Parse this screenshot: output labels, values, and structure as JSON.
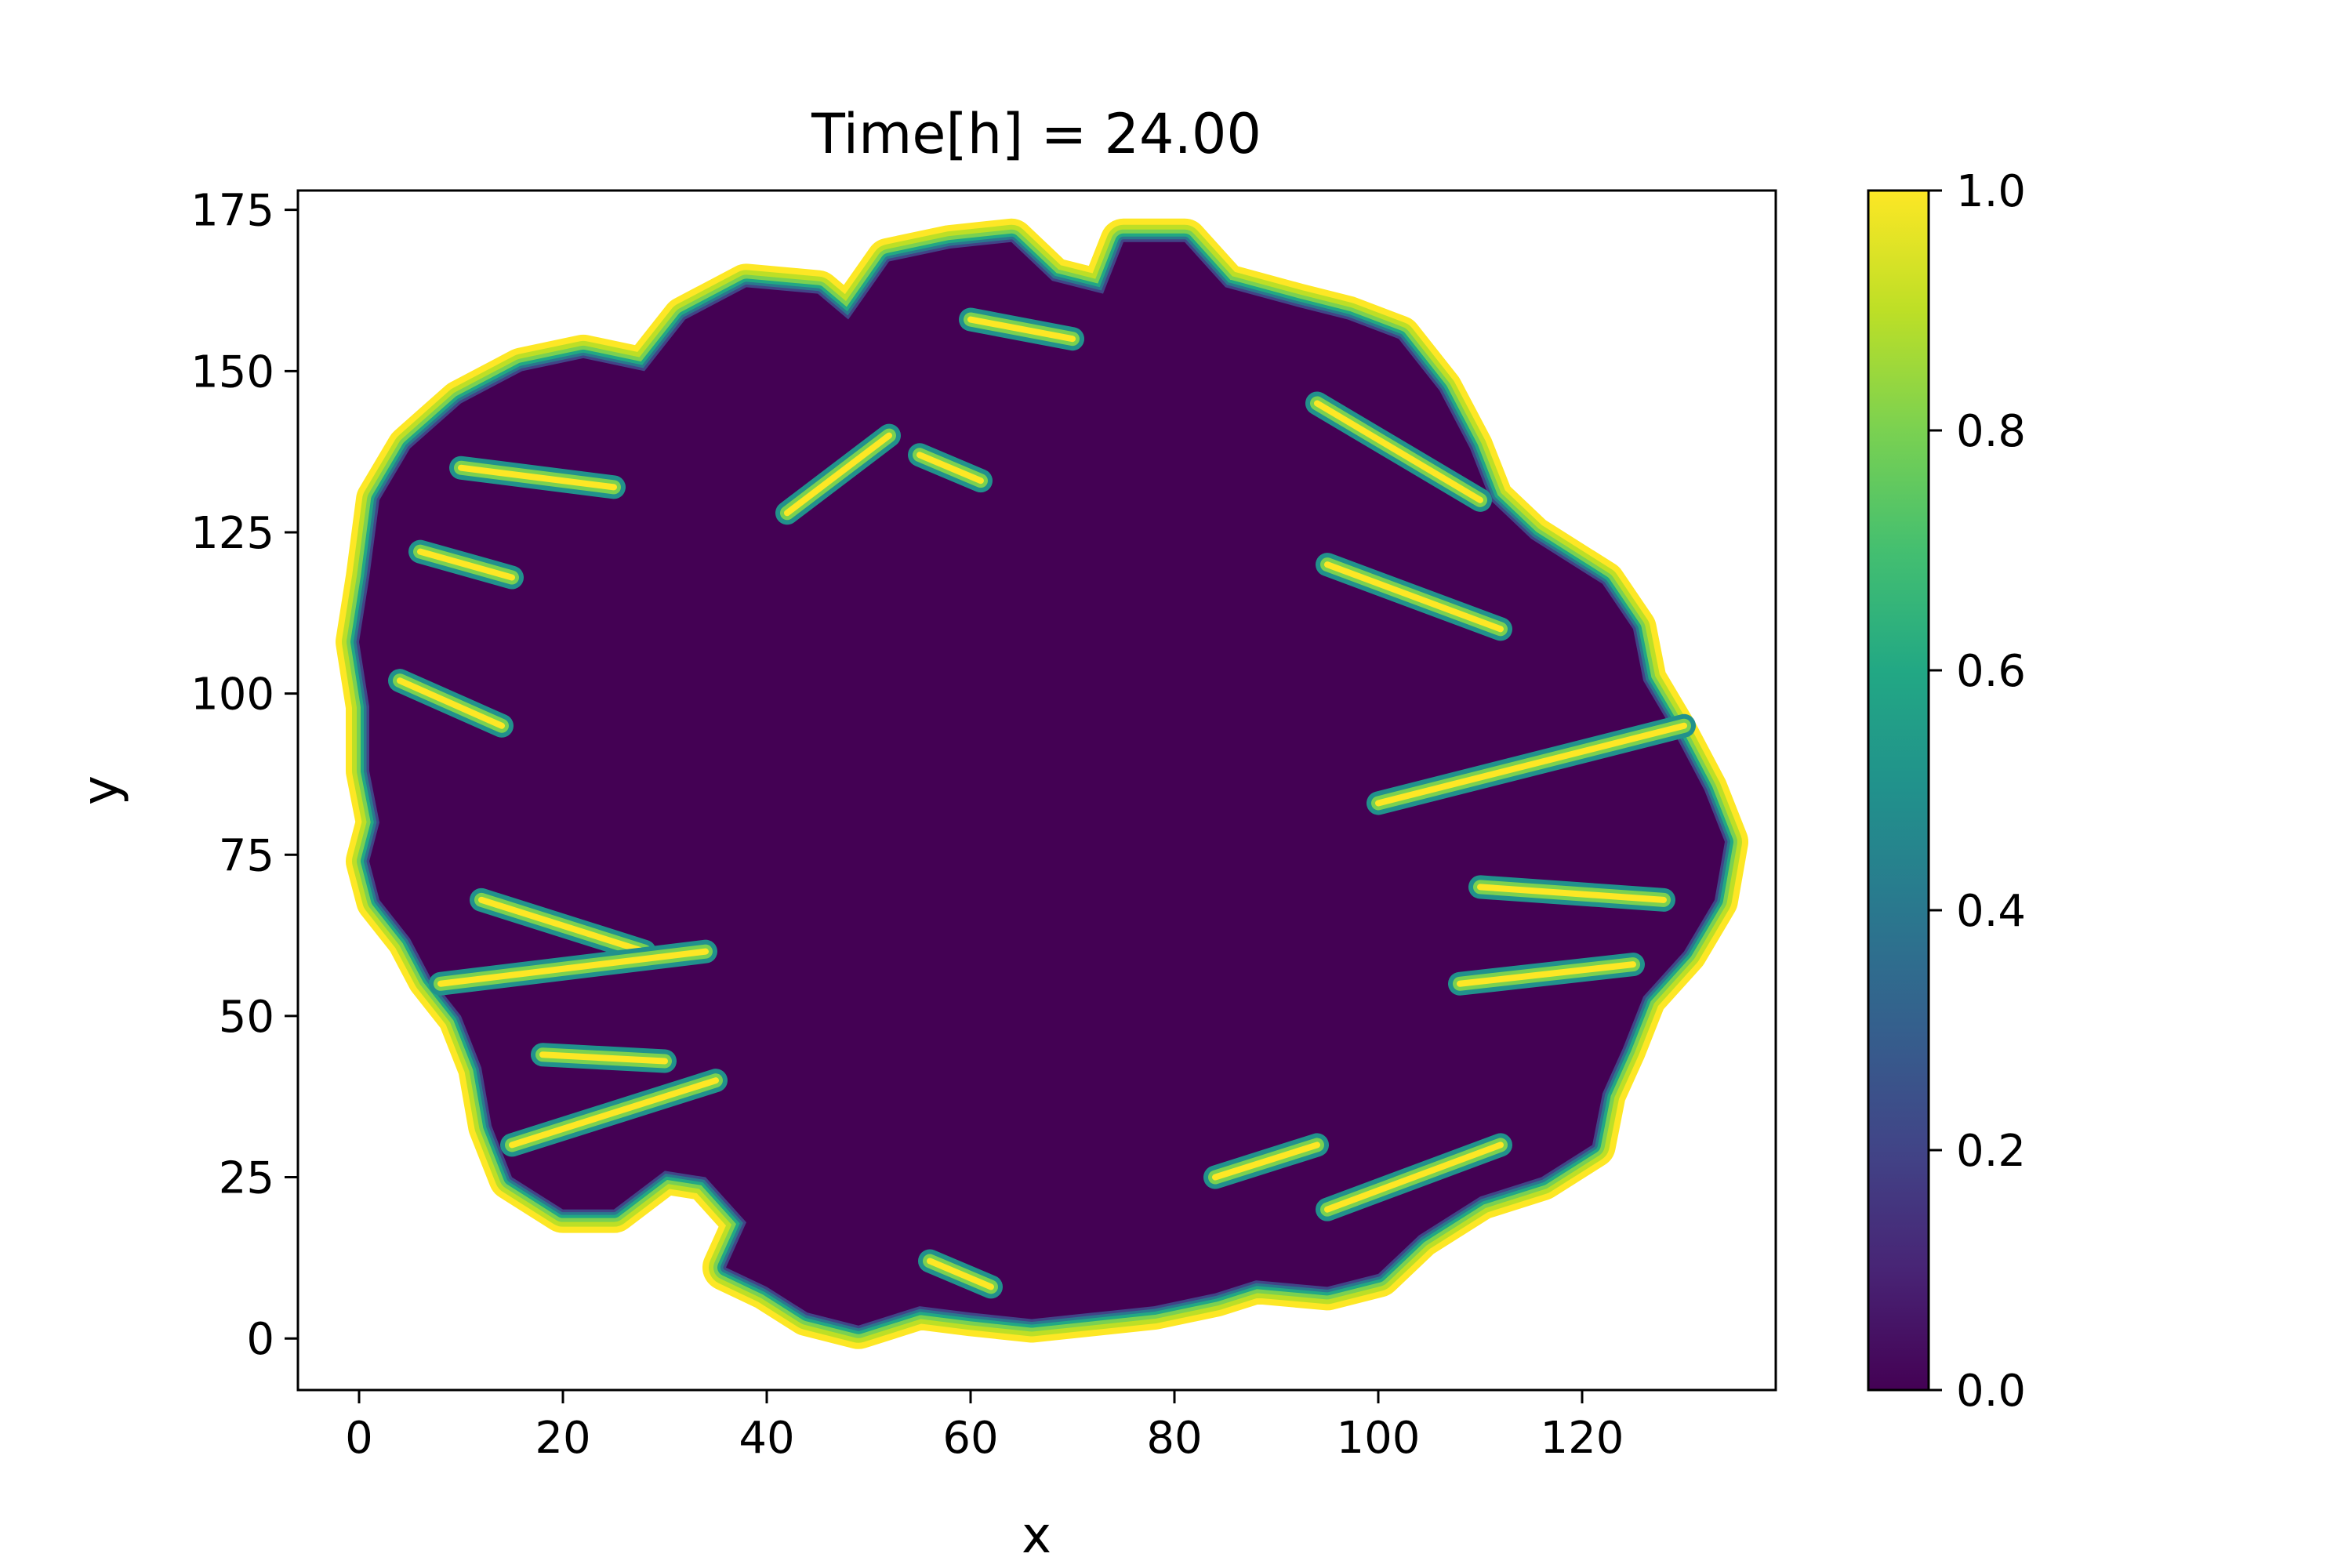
{
  "chart_data": {
    "type": "heatmap",
    "title": "Time[h] = 24.00",
    "xlabel": "x",
    "ylabel": "y",
    "xlim": [
      -6,
      139
    ],
    "ylim": [
      -8,
      178
    ],
    "xticks": [
      0,
      20,
      40,
      60,
      80,
      100,
      120
    ],
    "yticks": [
      0,
      25,
      50,
      75,
      100,
      125,
      150,
      175
    ],
    "grid": false,
    "colormap": "viridis",
    "colorbar": {
      "range": [
        0.0,
        1.0
      ],
      "ticks": [
        0.0,
        0.2,
        0.4,
        0.6,
        0.8,
        1.0
      ],
      "tick_labels": [
        "0.0",
        "0.2",
        "0.4",
        "0.6",
        "0.8",
        "1.0"
      ]
    },
    "interior_value": 0.0,
    "boundary_value": 1.0,
    "outline": [
      [
        2,
        130
      ],
      [
        5,
        138
      ],
      [
        10,
        145
      ],
      [
        16,
        150
      ],
      [
        22,
        152
      ],
      [
        28,
        150
      ],
      [
        32,
        158
      ],
      [
        38,
        163
      ],
      [
        45,
        162
      ],
      [
        48,
        158
      ],
      [
        52,
        167
      ],
      [
        58,
        169
      ],
      [
        64,
        170
      ],
      [
        68,
        164
      ],
      [
        73,
        162
      ],
      [
        75,
        170
      ],
      [
        81,
        170
      ],
      [
        85,
        163
      ],
      [
        92,
        160
      ],
      [
        97,
        158
      ],
      [
        102,
        155
      ],
      [
        106,
        147
      ],
      [
        109,
        138
      ],
      [
        111,
        130
      ],
      [
        115,
        124
      ],
      [
        122,
        117
      ],
      [
        125,
        110
      ],
      [
        126,
        102
      ],
      [
        129,
        94
      ],
      [
        132,
        85
      ],
      [
        134,
        77
      ],
      [
        133,
        68
      ],
      [
        130,
        60
      ],
      [
        126,
        53
      ],
      [
        124,
        45
      ],
      [
        122,
        38
      ],
      [
        121,
        30
      ],
      [
        116,
        25
      ],
      [
        110,
        22
      ],
      [
        104,
        16
      ],
      [
        100,
        10
      ],
      [
        95,
        8
      ],
      [
        88,
        9
      ],
      [
        84,
        7
      ],
      [
        78,
        5
      ],
      [
        72,
        4
      ],
      [
        66,
        3
      ],
      [
        60,
        4
      ],
      [
        55,
        5
      ],
      [
        49,
        2
      ],
      [
        44,
        4
      ],
      [
        40,
        8
      ],
      [
        36,
        11
      ],
      [
        38,
        18
      ],
      [
        34,
        25
      ],
      [
        30,
        26
      ],
      [
        25,
        20
      ],
      [
        20,
        20
      ],
      [
        15,
        25
      ],
      [
        13,
        33
      ],
      [
        12,
        42
      ],
      [
        10,
        50
      ],
      [
        7,
        56
      ],
      [
        5,
        62
      ],
      [
        2,
        68
      ],
      [
        1,
        74
      ],
      [
        2,
        80
      ],
      [
        1,
        88
      ],
      [
        1,
        98
      ],
      [
        0,
        108
      ],
      [
        1,
        118
      ]
    ],
    "inward_folds": [
      [
        [
          10,
          135
        ],
        [
          25,
          132
        ]
      ],
      [
        [
          6,
          122
        ],
        [
          15,
          118
        ]
      ],
      [
        [
          4,
          102
        ],
        [
          14,
          95
        ]
      ],
      [
        [
          12,
          68
        ],
        [
          28,
          60
        ]
      ],
      [
        [
          8,
          55
        ],
        [
          34,
          60
        ]
      ],
      [
        [
          18,
          44
        ],
        [
          30,
          43
        ]
      ],
      [
        [
          15,
          30
        ],
        [
          35,
          40
        ]
      ],
      [
        [
          42,
          128
        ],
        [
          52,
          140
        ]
      ],
      [
        [
          55,
          137
        ],
        [
          61,
          133
        ]
      ],
      [
        [
          60,
          158
        ],
        [
          70,
          155
        ]
      ],
      [
        [
          94,
          145
        ],
        [
          110,
          130
        ]
      ],
      [
        [
          95,
          120
        ],
        [
          112,
          110
        ]
      ],
      [
        [
          100,
          83
        ],
        [
          130,
          95
        ]
      ],
      [
        [
          110,
          70
        ],
        [
          128,
          68
        ]
      ],
      [
        [
          108,
          55
        ],
        [
          125,
          58
        ]
      ],
      [
        [
          95,
          20
        ],
        [
          112,
          30
        ]
      ],
      [
        [
          84,
          25
        ],
        [
          94,
          30
        ]
      ],
      [
        [
          56,
          12
        ],
        [
          62,
          8
        ]
      ]
    ]
  }
}
